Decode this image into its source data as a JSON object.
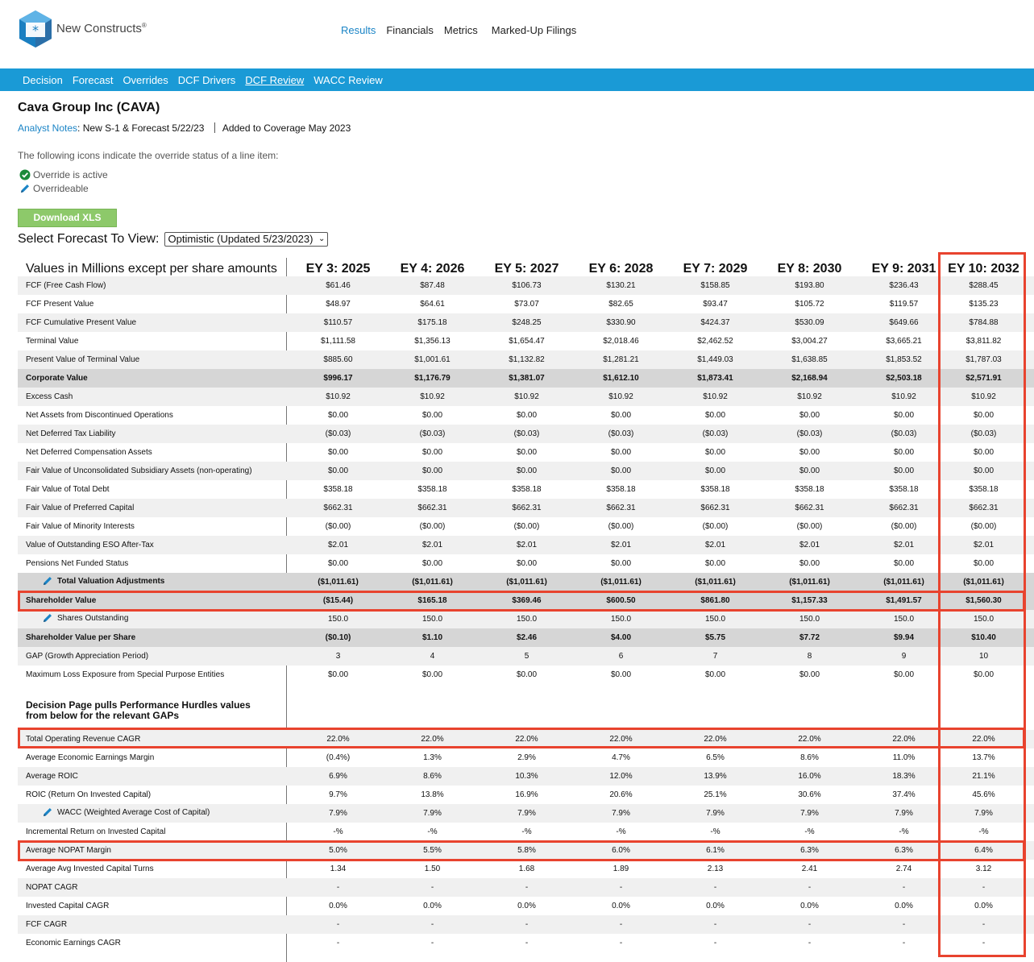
{
  "brand": {
    "name": "New Constructs",
    "reg": "®"
  },
  "top_nav": [
    "Results",
    "Financials",
    "Metrics",
    "Marked-Up Filings"
  ],
  "sub_nav": [
    "Decision",
    "Forecast",
    "Overrides",
    "DCF Drivers",
    "DCF Review",
    "WACC Review"
  ],
  "company": "Cava Group Inc (CAVA)",
  "notes": {
    "link": "Analyst Notes",
    "colon": ":",
    "note": "New S-1 & Forecast 5/22/23",
    "coverage": "Added to Coverage May 2023"
  },
  "legend": {
    "intro": "The following icons indicate the override status of a line item:",
    "active": "Override is active",
    "overrideable": "Overrideable"
  },
  "download_label": "Download XLS",
  "select": {
    "label": "Select Forecast To View:",
    "value": "Optimistic (Updated 5/23/2023)"
  },
  "table": {
    "header_label": "Values in Millions except per share amounts",
    "columns": [
      "EY 3: 2025",
      "EY 4: 2026",
      "EY 5: 2027",
      "EY 6: 2028",
      "EY 7: 2029",
      "EY 8: 2030",
      "EY 9: 2031",
      "EY 10: 2032"
    ],
    "rows1": [
      {
        "label": "FCF (Free Cash Flow)",
        "values": [
          "$61.46",
          "$87.48",
          "$106.73",
          "$130.21",
          "$158.85",
          "$193.80",
          "$236.43",
          "$288.45"
        ]
      },
      {
        "label": "FCF Present Value",
        "values": [
          "$48.97",
          "$64.61",
          "$73.07",
          "$82.65",
          "$93.47",
          "$105.72",
          "$119.57",
          "$135.23"
        ]
      },
      {
        "label": "FCF Cumulative Present Value",
        "values": [
          "$110.57",
          "$175.18",
          "$248.25",
          "$330.90",
          "$424.37",
          "$530.09",
          "$649.66",
          "$784.88"
        ]
      },
      {
        "label": "Terminal Value",
        "values": [
          "$1,111.58",
          "$1,356.13",
          "$1,654.47",
          "$2,018.46",
          "$2,462.52",
          "$3,004.27",
          "$3,665.21",
          "$3,811.82"
        ]
      },
      {
        "label": "Present Value of Terminal Value",
        "values": [
          "$885.60",
          "$1,001.61",
          "$1,132.82",
          "$1,281.21",
          "$1,449.03",
          "$1,638.85",
          "$1,853.52",
          "$1,787.03"
        ]
      },
      {
        "label": "Corporate Value",
        "values": [
          "$996.17",
          "$1,176.79",
          "$1,381.07",
          "$1,612.10",
          "$1,873.41",
          "$2,168.94",
          "$2,503.18",
          "$2,571.91"
        ],
        "sub": true
      },
      {
        "label": "Excess Cash",
        "values": [
          "$10.92",
          "$10.92",
          "$10.92",
          "$10.92",
          "$10.92",
          "$10.92",
          "$10.92",
          "$10.92"
        ]
      },
      {
        "label": "Net Assets from Discontinued Operations",
        "values": [
          "$0.00",
          "$0.00",
          "$0.00",
          "$0.00",
          "$0.00",
          "$0.00",
          "$0.00",
          "$0.00"
        ]
      },
      {
        "label": "Net Deferred Tax Liability",
        "values": [
          "($0.03)",
          "($0.03)",
          "($0.03)",
          "($0.03)",
          "($0.03)",
          "($0.03)",
          "($0.03)",
          "($0.03)"
        ]
      },
      {
        "label": "Net Deferred Compensation Assets",
        "values": [
          "$0.00",
          "$0.00",
          "$0.00",
          "$0.00",
          "$0.00",
          "$0.00",
          "$0.00",
          "$0.00"
        ]
      },
      {
        "label": "Fair Value of Unconsolidated Subsidiary Assets (non-operating)",
        "values": [
          "$0.00",
          "$0.00",
          "$0.00",
          "$0.00",
          "$0.00",
          "$0.00",
          "$0.00",
          "$0.00"
        ]
      },
      {
        "label": "Fair Value of Total Debt",
        "values": [
          "$358.18",
          "$358.18",
          "$358.18",
          "$358.18",
          "$358.18",
          "$358.18",
          "$358.18",
          "$358.18"
        ]
      },
      {
        "label": "Fair Value of Preferred Capital",
        "values": [
          "$662.31",
          "$662.31",
          "$662.31",
          "$662.31",
          "$662.31",
          "$662.31",
          "$662.31",
          "$662.31"
        ]
      },
      {
        "label": "Fair Value of Minority Interests",
        "values": [
          "($0.00)",
          "($0.00)",
          "($0.00)",
          "($0.00)",
          "($0.00)",
          "($0.00)",
          "($0.00)",
          "($0.00)"
        ]
      },
      {
        "label": "Value of Outstanding ESO After-Tax",
        "values": [
          "$2.01",
          "$2.01",
          "$2.01",
          "$2.01",
          "$2.01",
          "$2.01",
          "$2.01",
          "$2.01"
        ]
      },
      {
        "label": "Pensions Net Funded Status",
        "values": [
          "$0.00",
          "$0.00",
          "$0.00",
          "$0.00",
          "$0.00",
          "$0.00",
          "$0.00",
          "$0.00"
        ]
      },
      {
        "label": "Total Valuation Adjustments",
        "values": [
          "($1,011.61)",
          "($1,011.61)",
          "($1,011.61)",
          "($1,011.61)",
          "($1,011.61)",
          "($1,011.61)",
          "($1,011.61)",
          "($1,011.61)"
        ],
        "sub": true,
        "pen": true
      },
      {
        "label": "Shareholder Value",
        "values": [
          "($15.44)",
          "$165.18",
          "$369.46",
          "$600.50",
          "$861.80",
          "$1,157.33",
          "$1,491.57",
          "$1,560.30"
        ],
        "sub": true
      },
      {
        "label": "Shares Outstanding",
        "values": [
          "150.0",
          "150.0",
          "150.0",
          "150.0",
          "150.0",
          "150.0",
          "150.0",
          "150.0"
        ],
        "pen": true
      },
      {
        "label": "Shareholder Value per Share",
        "values": [
          "($0.10)",
          "$1.10",
          "$2.46",
          "$4.00",
          "$5.75",
          "$7.72",
          "$9.94",
          "$10.40"
        ],
        "sub": true
      },
      {
        "label": "GAP (Growth Appreciation Period)",
        "values": [
          "3",
          "4",
          "5",
          "6",
          "7",
          "8",
          "9",
          "10"
        ]
      },
      {
        "label": "Maximum Loss Exposure from Special Purpose Entities",
        "values": [
          "$0.00",
          "$0.00",
          "$0.00",
          "$0.00",
          "$0.00",
          "$0.00",
          "$0.00",
          "$0.00"
        ]
      }
    ],
    "section_head": [
      "Decision Page pulls Performance Hurdles values",
      "from below for the relevant GAPs"
    ],
    "rows2": [
      {
        "label": "Total Operating Revenue CAGR",
        "values": [
          "22.0%",
          "22.0%",
          "22.0%",
          "22.0%",
          "22.0%",
          "22.0%",
          "22.0%",
          "22.0%"
        ]
      },
      {
        "label": "Average Economic Earnings Margin",
        "values": [
          "(0.4%)",
          "1.3%",
          "2.9%",
          "4.7%",
          "6.5%",
          "8.6%",
          "11.0%",
          "13.7%"
        ]
      },
      {
        "label": "Average ROIC",
        "values": [
          "6.9%",
          "8.6%",
          "10.3%",
          "12.0%",
          "13.9%",
          "16.0%",
          "18.3%",
          "21.1%"
        ]
      },
      {
        "label": "ROIC (Return On Invested Capital)",
        "values": [
          "9.7%",
          "13.8%",
          "16.9%",
          "20.6%",
          "25.1%",
          "30.6%",
          "37.4%",
          "45.6%"
        ]
      },
      {
        "label": "WACC (Weighted Average Cost of Capital)",
        "values": [
          "7.9%",
          "7.9%",
          "7.9%",
          "7.9%",
          "7.9%",
          "7.9%",
          "7.9%",
          "7.9%"
        ],
        "pen": true
      },
      {
        "label": "Incremental Return on Invested Capital",
        "values": [
          "-%",
          "-%",
          "-%",
          "-%",
          "-%",
          "-%",
          "-%",
          "-%"
        ]
      },
      {
        "label": "Average NOPAT Margin",
        "values": [
          "5.0%",
          "5.5%",
          "5.8%",
          "6.0%",
          "6.1%",
          "6.3%",
          "6.3%",
          "6.4%"
        ]
      },
      {
        "label": "Average Avg Invested Capital Turns",
        "values": [
          "1.34",
          "1.50",
          "1.68",
          "1.89",
          "2.13",
          "2.41",
          "2.74",
          "3.12"
        ]
      },
      {
        "label": "NOPAT CAGR",
        "values": [
          "-",
          "-",
          "-",
          "-",
          "-",
          "-",
          "-",
          "-"
        ]
      },
      {
        "label": "Invested Capital CAGR",
        "values": [
          "0.0%",
          "0.0%",
          "0.0%",
          "0.0%",
          "0.0%",
          "0.0%",
          "0.0%",
          "0.0%"
        ]
      },
      {
        "label": "FCF CAGR",
        "values": [
          "-",
          "-",
          "-",
          "-",
          "-",
          "-",
          "-",
          "-"
        ]
      },
      {
        "label": "Economic Earnings CAGR",
        "values": [
          "-",
          "-",
          "-",
          "-",
          "-",
          "-",
          "-",
          "-"
        ]
      }
    ]
  },
  "colors": {
    "accent": "#1a9ad6",
    "link": "#1a84c6",
    "highlight": "#e8432e",
    "button": "#8dc96a"
  }
}
